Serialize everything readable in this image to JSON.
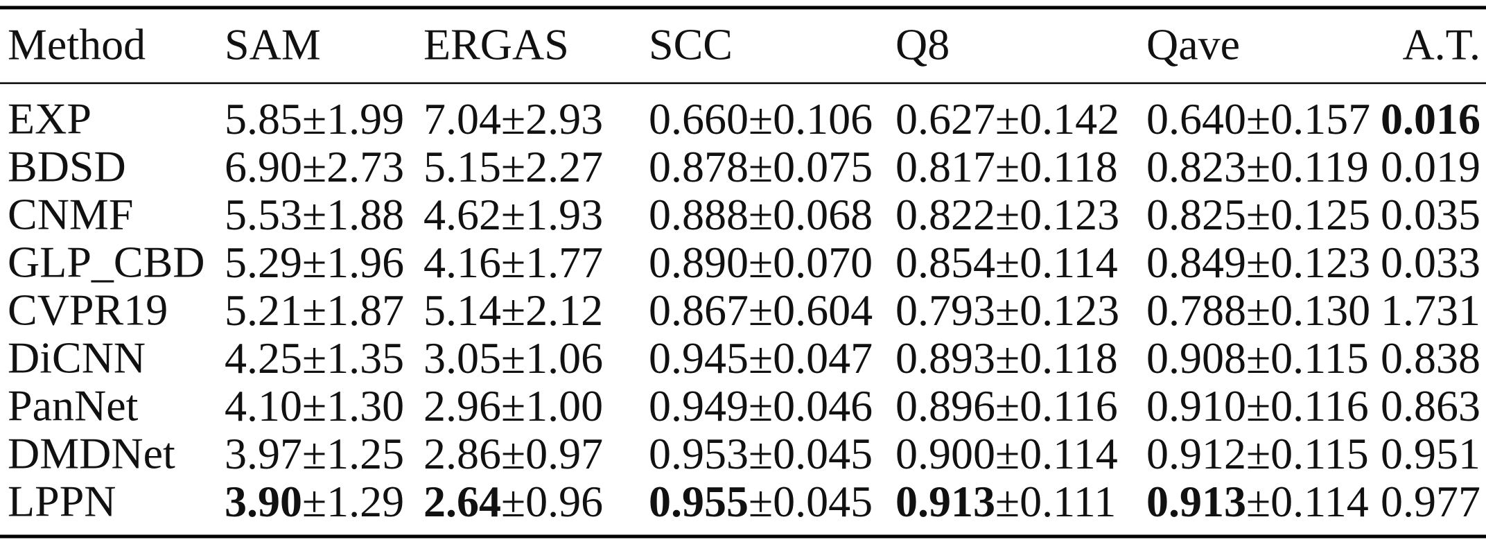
{
  "table": {
    "header": [
      "Method",
      "SAM",
      "ERGAS",
      "SCC",
      "Q8",
      "Qave",
      "A.T."
    ],
    "rows": [
      {
        "method": "EXP",
        "cells": [
          {
            "mean": "5.85",
            "std": "±1.99"
          },
          {
            "mean": "7.04",
            "std": "±2.93"
          },
          {
            "mean": "0.660",
            "std": "±0.106"
          },
          {
            "mean": "0.627",
            "std": "±0.142"
          },
          {
            "mean": "0.640",
            "std": "±0.157"
          },
          {
            "mean": "0.016",
            "bold": true
          }
        ]
      },
      {
        "method": "BDSD",
        "cells": [
          {
            "mean": "6.90",
            "std": "±2.73"
          },
          {
            "mean": "5.15",
            "std": "±2.27"
          },
          {
            "mean": "0.878",
            "std": "±0.075"
          },
          {
            "mean": "0.817",
            "std": "±0.118"
          },
          {
            "mean": "0.823",
            "std": "±0.119"
          },
          {
            "mean": "0.019"
          }
        ]
      },
      {
        "method": "CNMF",
        "cells": [
          {
            "mean": "5.53",
            "std": "±1.88"
          },
          {
            "mean": "4.62",
            "std": "±1.93"
          },
          {
            "mean": "0.888",
            "std": "±0.068"
          },
          {
            "mean": "0.822",
            "std": "±0.123"
          },
          {
            "mean": "0.825",
            "std": "±0.125"
          },
          {
            "mean": "0.035"
          }
        ]
      },
      {
        "method": "GLP_CBD",
        "cells": [
          {
            "mean": "5.29",
            "std": "±1.96"
          },
          {
            "mean": "4.16",
            "std": "±1.77"
          },
          {
            "mean": "0.890",
            "std": "±0.070"
          },
          {
            "mean": "0.854",
            "std": "±0.114"
          },
          {
            "mean": "0.849",
            "std": "±0.123"
          },
          {
            "mean": "0.033"
          }
        ]
      },
      {
        "method": "CVPR19",
        "cells": [
          {
            "mean": "5.21",
            "std": "±1.87"
          },
          {
            "mean": "5.14",
            "std": "±2.12"
          },
          {
            "mean": "0.867",
            "std": "±0.604"
          },
          {
            "mean": "0.793",
            "std": "±0.123"
          },
          {
            "mean": "0.788",
            "std": "±0.130"
          },
          {
            "mean": "1.731"
          }
        ]
      },
      {
        "method": "DiCNN",
        "cells": [
          {
            "mean": "4.25",
            "std": "±1.35"
          },
          {
            "mean": "3.05",
            "std": "±1.06"
          },
          {
            "mean": "0.945",
            "std": "±0.047"
          },
          {
            "mean": "0.893",
            "std": "±0.118"
          },
          {
            "mean": "0.908",
            "std": "±0.115"
          },
          {
            "mean": "0.838"
          }
        ]
      },
      {
        "method": "PanNet",
        "cells": [
          {
            "mean": "4.10",
            "std": "±1.30"
          },
          {
            "mean": "2.96",
            "std": "±1.00"
          },
          {
            "mean": "0.949",
            "std": "±0.046"
          },
          {
            "mean": "0.896",
            "std": "±0.116"
          },
          {
            "mean": "0.910",
            "std": "±0.116"
          },
          {
            "mean": "0.863"
          }
        ]
      },
      {
        "method": "DMDNet",
        "cells": [
          {
            "mean": "3.97",
            "std": "±1.25"
          },
          {
            "mean": "2.86",
            "std": "±0.97"
          },
          {
            "mean": "0.953",
            "std": "±0.045"
          },
          {
            "mean": "0.900",
            "std": "±0.114"
          },
          {
            "mean": "0.912",
            "std": "±0.115"
          },
          {
            "mean": "0.951"
          }
        ]
      },
      {
        "method": "LPPN",
        "cells": [
          {
            "mean": "3.90",
            "std": "±1.29",
            "bold": true
          },
          {
            "mean": "2.64",
            "std": "±0.96",
            "bold": true
          },
          {
            "mean": "0.955",
            "std": "±0.045",
            "bold": true
          },
          {
            "mean": "0.913",
            "std": "±0.111",
            "bold": true
          },
          {
            "mean": "0.913",
            "std": "±0.114",
            "bold": true
          },
          {
            "mean": "0.977"
          }
        ]
      }
    ]
  }
}
